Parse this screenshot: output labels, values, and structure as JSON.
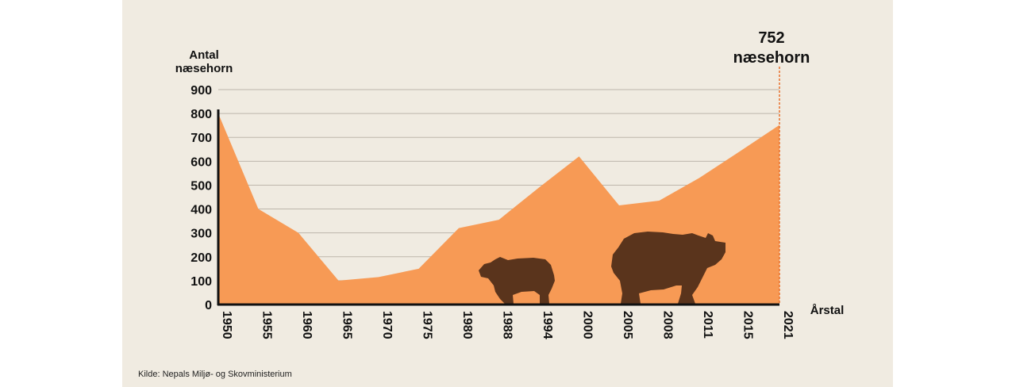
{
  "chart_data": {
    "type": "area",
    "categories": [
      "1950",
      "1955",
      "1960",
      "1965",
      "1970",
      "1975",
      "1980",
      "1988",
      "1994",
      "2000",
      "2005",
      "2008",
      "2011",
      "2015",
      "2021"
    ],
    "values": [
      800,
      400,
      300,
      100,
      115,
      150,
      320,
      355,
      490,
      620,
      415,
      435,
      530,
      640,
      752
    ],
    "ylabel_line1": "Antal",
    "ylabel_line2": "næsehorn",
    "xlabel": "Årstal",
    "ylim": [
      0,
      900
    ],
    "yticks": [
      0,
      100,
      200,
      300,
      400,
      500,
      600,
      700,
      800,
      900
    ],
    "grid": true,
    "callout": {
      "value": "752",
      "label": "næsehorn"
    },
    "source": "Kilde: Nepals Miljø- og Skovministerium",
    "colors": {
      "area": "#f79a55",
      "grid": "#bdb6ab",
      "marker": "#e8702a",
      "rhino": "#5a341c",
      "background": "#f0ebe1"
    }
  }
}
